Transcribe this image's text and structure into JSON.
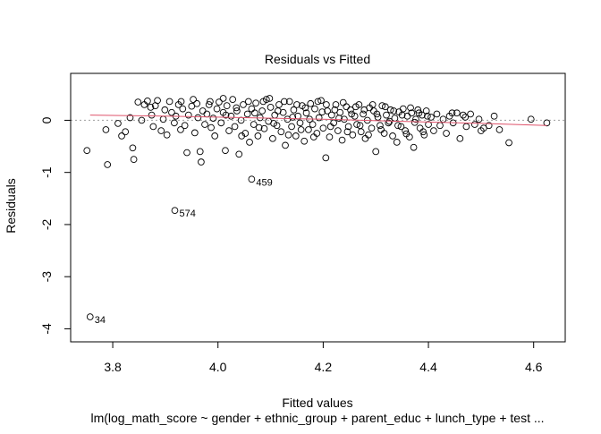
{
  "chart_data": {
    "type": "scatter",
    "title": "Residuals vs Fitted",
    "xlabel": "Fitted values",
    "ylabel": "Residuals",
    "subtitle": "lm(log_math_score ~ gender + ethnic_group + parent_educ + lunch_type + test ...",
    "xlim": [
      3.72,
      4.66
    ],
    "ylim": [
      -4.25,
      0.9
    ],
    "x_ticks": [
      3.8,
      4.0,
      4.2,
      4.4,
      4.6
    ],
    "x_tick_labels": [
      "3.8",
      "4.0",
      "4.2",
      "4.4",
      "4.6"
    ],
    "y_ticks": [
      -4,
      -3,
      -2,
      -1,
      0
    ],
    "y_tick_labels": [
      "-4",
      "-3",
      "-2",
      "-1",
      "0"
    ],
    "zero_line": true,
    "smoother_color": "#DF536B",
    "zero_line_color": "#9E9E9E",
    "point_color": "#000000",
    "labeled_points": [
      {
        "label": "34",
        "x": 3.757,
        "y": -3.77
      },
      {
        "label": "574",
        "x": 3.918,
        "y": -1.73
      },
      {
        "label": "459",
        "x": 4.064,
        "y": -1.13
      }
    ],
    "smoother": [
      {
        "x": 3.757,
        "y": 0.1
      },
      {
        "x": 3.9,
        "y": 0.08
      },
      {
        "x": 4.05,
        "y": 0.05
      },
      {
        "x": 4.2,
        "y": 0.02
      },
      {
        "x": 4.35,
        "y": -0.02
      },
      {
        "x": 4.5,
        "y": -0.06
      },
      {
        "x": 4.625,
        "y": -0.1
      }
    ],
    "points": [
      {
        "x": 3.751,
        "y": -0.58
      },
      {
        "x": 3.79,
        "y": -0.85
      },
      {
        "x": 3.787,
        "y": -0.18
      },
      {
        "x": 3.81,
        "y": -0.06
      },
      {
        "x": 3.817,
        "y": -0.3
      },
      {
        "x": 3.824,
        "y": -0.22
      },
      {
        "x": 3.833,
        "y": 0.05
      },
      {
        "x": 3.838,
        "y": -0.53
      },
      {
        "x": 3.84,
        "y": -0.75
      },
      {
        "x": 3.848,
        "y": 0.35
      },
      {
        "x": 3.855,
        "y": 0.0
      },
      {
        "x": 3.86,
        "y": 0.3
      },
      {
        "x": 3.866,
        "y": 0.37
      },
      {
        "x": 3.872,
        "y": 0.25
      },
      {
        "x": 3.874,
        "y": 0.1
      },
      {
        "x": 3.877,
        "y": -0.12
      },
      {
        "x": 3.881,
        "y": 0.28
      },
      {
        "x": 3.885,
        "y": 0.38
      },
      {
        "x": 3.892,
        "y": -0.2
      },
      {
        "x": 3.896,
        "y": 0.02
      },
      {
        "x": 3.899,
        "y": 0.2
      },
      {
        "x": 3.903,
        "y": -0.28
      },
      {
        "x": 3.908,
        "y": 0.36
      },
      {
        "x": 3.912,
        "y": 0.15
      },
      {
        "x": 3.917,
        "y": -0.05
      },
      {
        "x": 3.92,
        "y": 0.08
      },
      {
        "x": 3.925,
        "y": 0.3
      },
      {
        "x": 3.929,
        "y": -0.18
      },
      {
        "x": 3.933,
        "y": 0.22
      },
      {
        "x": 3.937,
        "y": -0.1
      },
      {
        "x": 3.941,
        "y": -0.62
      },
      {
        "x": 3.944,
        "y": 0.1
      },
      {
        "x": 3.95,
        "y": 0.27
      },
      {
        "x": 3.953,
        "y": 0.4
      },
      {
        "x": 3.956,
        "y": -0.24
      },
      {
        "x": 3.962,
        "y": 0.05
      },
      {
        "x": 3.966,
        "y": -0.6
      },
      {
        "x": 3.968,
        "y": -0.8
      },
      {
        "x": 3.971,
        "y": 0.18
      },
      {
        "x": 3.975,
        "y": -0.08
      },
      {
        "x": 3.979,
        "y": 0.12
      },
      {
        "x": 3.983,
        "y": 0.3
      },
      {
        "x": 3.987,
        "y": -0.14
      },
      {
        "x": 3.991,
        "y": 0.04
      },
      {
        "x": 3.994,
        "y": -0.3
      },
      {
        "x": 3.998,
        "y": 0.22
      },
      {
        "x": 4.002,
        "y": 0.35
      },
      {
        "x": 4.006,
        "y": -0.05
      },
      {
        "x": 4.01,
        "y": 0.15
      },
      {
        "x": 4.014,
        "y": -0.58
      },
      {
        "x": 4.017,
        "y": 0.28
      },
      {
        "x": 4.021,
        "y": -0.2
      },
      {
        "x": 4.025,
        "y": 0.08
      },
      {
        "x": 4.028,
        "y": 0.4
      },
      {
        "x": 4.032,
        "y": -0.12
      },
      {
        "x": 4.036,
        "y": 0.18
      },
      {
        "x": 4.04,
        "y": -0.65
      },
      {
        "x": 4.044,
        "y": 0.0
      },
      {
        "x": 4.048,
        "y": 0.3
      },
      {
        "x": 4.052,
        "y": -0.25
      },
      {
        "x": 4.056,
        "y": 0.12
      },
      {
        "x": 4.06,
        "y": -0.42
      },
      {
        "x": 4.064,
        "y": 0.22
      },
      {
        "x": 4.068,
        "y": -0.08
      },
      {
        "x": 4.072,
        "y": 0.33
      },
      {
        "x": 4.076,
        "y": -0.3
      },
      {
        "x": 4.08,
        "y": 0.05
      },
      {
        "x": 4.084,
        "y": 0.18
      },
      {
        "x": 4.088,
        "y": -0.16
      },
      {
        "x": 4.092,
        "y": 0.4
      },
      {
        "x": 4.096,
        "y": -0.02
      },
      {
        "x": 4.1,
        "y": 0.25
      },
      {
        "x": 4.104,
        "y": -0.35
      },
      {
        "x": 4.108,
        "y": 0.1
      },
      {
        "x": 4.112,
        "y": -0.1
      },
      {
        "x": 4.116,
        "y": 0.3
      },
      {
        "x": 4.12,
        "y": -0.22
      },
      {
        "x": 4.124,
        "y": 0.15
      },
      {
        "x": 4.128,
        "y": -0.48
      },
      {
        "x": 4.132,
        "y": 0.02
      },
      {
        "x": 4.136,
        "y": 0.36
      },
      {
        "x": 4.14,
        "y": -0.12
      },
      {
        "x": 4.144,
        "y": 0.2
      },
      {
        "x": 4.148,
        "y": -0.3
      },
      {
        "x": 4.152,
        "y": 0.08
      },
      {
        "x": 4.156,
        "y": -0.05
      },
      {
        "x": 4.16,
        "y": 0.28
      },
      {
        "x": 4.164,
        "y": -0.4
      },
      {
        "x": 4.168,
        "y": 0.14
      },
      {
        "x": 4.172,
        "y": -0.18
      },
      {
        "x": 4.176,
        "y": 0.32
      },
      {
        "x": 4.18,
        "y": -0.08
      },
      {
        "x": 4.184,
        "y": 0.22
      },
      {
        "x": 4.188,
        "y": -0.25
      },
      {
        "x": 4.192,
        "y": 0.05
      },
      {
        "x": 4.196,
        "y": 0.38
      },
      {
        "x": 4.2,
        "y": -0.15
      },
      {
        "x": 4.205,
        "y": -0.72
      },
      {
        "x": 4.208,
        "y": 0.18
      },
      {
        "x": 4.212,
        "y": -0.32
      },
      {
        "x": 4.216,
        "y": 0.1
      },
      {
        "x": 4.22,
        "y": -0.05
      },
      {
        "x": 4.224,
        "y": 0.3
      },
      {
        "x": 4.228,
        "y": -0.2
      },
      {
        "x": 4.232,
        "y": 0.15
      },
      {
        "x": 4.236,
        "y": -0.38
      },
      {
        "x": 4.24,
        "y": 0.02
      },
      {
        "x": 4.244,
        "y": 0.26
      },
      {
        "x": 4.248,
        "y": -0.12
      },
      {
        "x": 4.252,
        "y": 0.2
      },
      {
        "x": 4.256,
        "y": -0.28
      },
      {
        "x": 4.26,
        "y": 0.08
      },
      {
        "x": 4.264,
        "y": -0.08
      },
      {
        "x": 4.268,
        "y": 0.3
      },
      {
        "x": 4.272,
        "y": -0.22
      },
      {
        "x": 4.276,
        "y": 0.12
      },
      {
        "x": 4.28,
        "y": -0.35
      },
      {
        "x": 4.284,
        "y": 0.0
      },
      {
        "x": 4.288,
        "y": 0.24
      },
      {
        "x": 4.292,
        "y": -0.15
      },
      {
        "x": 4.296,
        "y": 0.18
      },
      {
        "x": 4.3,
        "y": -0.6
      },
      {
        "x": 4.304,
        "y": 0.06
      },
      {
        "x": 4.308,
        "y": -0.1
      },
      {
        "x": 4.312,
        "y": 0.28
      },
      {
        "x": 4.316,
        "y": -0.25
      },
      {
        "x": 4.32,
        "y": 0.1
      },
      {
        "x": 4.324,
        "y": -0.05
      },
      {
        "x": 4.328,
        "y": 0.2
      },
      {
        "x": 4.332,
        "y": -0.3
      },
      {
        "x": 4.336,
        "y": 0.04
      },
      {
        "x": 4.34,
        "y": -0.42
      },
      {
        "x": 4.344,
        "y": 0.16
      },
      {
        "x": 4.348,
        "y": -0.12
      },
      {
        "x": 4.352,
        "y": 0.22
      },
      {
        "x": 4.356,
        "y": -0.2
      },
      {
        "x": 4.36,
        "y": 0.08
      },
      {
        "x": 4.364,
        "y": -0.32
      },
      {
        "x": 4.368,
        "y": 0.14
      },
      {
        "x": 4.372,
        "y": -0.52
      },
      {
        "x": 4.376,
        "y": 0.02
      },
      {
        "x": 4.38,
        "y": 0.2
      },
      {
        "x": 4.384,
        "y": -0.15
      },
      {
        "x": 4.388,
        "y": 0.1
      },
      {
        "x": 4.392,
        "y": -0.28
      },
      {
        "x": 4.396,
        "y": 0.18
      },
      {
        "x": 4.4,
        "y": -0.08
      },
      {
        "x": 4.405,
        "y": 0.06
      },
      {
        "x": 4.41,
        "y": -0.2
      },
      {
        "x": 4.416,
        "y": 0.12
      },
      {
        "x": 4.422,
        "y": -0.1
      },
      {
        "x": 4.428,
        "y": 0.02
      },
      {
        "x": 4.434,
        "y": -0.25
      },
      {
        "x": 4.44,
        "y": 0.08
      },
      {
        "x": 4.447,
        "y": -0.05
      },
      {
        "x": 4.454,
        "y": 0.14
      },
      {
        "x": 4.46,
        "y": -0.35
      },
      {
        "x": 4.466,
        "y": 0.1
      },
      {
        "x": 4.472,
        "y": -0.12
      },
      {
        "x": 4.48,
        "y": 0.12
      },
      {
        "x": 4.488,
        "y": -0.08
      },
      {
        "x": 4.496,
        "y": 0.02
      },
      {
        "x": 4.505,
        "y": -0.15
      },
      {
        "x": 4.515,
        "y": -0.1
      },
      {
        "x": 4.525,
        "y": 0.08
      },
      {
        "x": 4.535,
        "y": -0.18
      },
      {
        "x": 4.553,
        "y": -0.43
      },
      {
        "x": 4.595,
        "y": 0.02
      },
      {
        "x": 4.625,
        "y": -0.05
      },
      {
        "x": 3.93,
        "y": 0.36
      },
      {
        "x": 3.96,
        "y": 0.32
      },
      {
        "x": 3.985,
        "y": 0.36
      },
      {
        "x": 4.01,
        "y": 0.42
      },
      {
        "x": 4.015,
        "y": 0.1
      },
      {
        "x": 4.035,
        "y": 0.24
      },
      {
        "x": 4.045,
        "y": -0.3
      },
      {
        "x": 4.058,
        "y": 0.36
      },
      {
        "x": 4.07,
        "y": 0.14
      },
      {
        "x": 4.078,
        "y": -0.14
      },
      {
        "x": 4.086,
        "y": 0.36
      },
      {
        "x": 4.098,
        "y": 0.42
      },
      {
        "x": 4.106,
        "y": -0.06
      },
      {
        "x": 4.114,
        "y": 0.18
      },
      {
        "x": 4.126,
        "y": 0.36
      },
      {
        "x": 4.134,
        "y": -0.28
      },
      {
        "x": 4.142,
        "y": 0.06
      },
      {
        "x": 4.15,
        "y": 0.3
      },
      {
        "x": 4.158,
        "y": -0.18
      },
      {
        "x": 4.166,
        "y": 0.24
      },
      {
        "x": 4.174,
        "y": 0.02
      },
      {
        "x": 4.182,
        "y": -0.32
      },
      {
        "x": 4.19,
        "y": 0.36
      },
      {
        "x": 4.198,
        "y": 0.16
      },
      {
        "x": 4.206,
        "y": 0.3
      },
      {
        "x": 4.214,
        "y": -0.12
      },
      {
        "x": 4.222,
        "y": 0.2
      },
      {
        "x": 4.23,
        "y": 0.04
      },
      {
        "x": 4.238,
        "y": 0.34
      },
      {
        "x": 4.246,
        "y": -0.22
      },
      {
        "x": 4.254,
        "y": 0.12
      },
      {
        "x": 4.262,
        "y": 0.26
      },
      {
        "x": 4.27,
        "y": -0.1
      },
      {
        "x": 4.278,
        "y": 0.2
      },
      {
        "x": 4.286,
        "y": -0.28
      },
      {
        "x": 4.294,
        "y": 0.3
      },
      {
        "x": 4.302,
        "y": 0.12
      },
      {
        "x": 4.31,
        "y": -0.18
      },
      {
        "x": 4.318,
        "y": 0.26
      },
      {
        "x": 4.326,
        "y": -0.02
      },
      {
        "x": 4.334,
        "y": 0.18
      },
      {
        "x": 4.342,
        "y": -0.1
      },
      {
        "x": 4.35,
        "y": 0.1
      },
      {
        "x": 4.358,
        "y": -0.26
      },
      {
        "x": 4.366,
        "y": 0.24
      },
      {
        "x": 4.374,
        "y": -0.04
      },
      {
        "x": 4.382,
        "y": 0.14
      },
      {
        "x": 4.39,
        "y": -0.22
      },
      {
        "x": 4.398,
        "y": 0.08
      },
      {
        "x": 4.445,
        "y": 0.14
      },
      {
        "x": 4.47,
        "y": 0.06
      },
      {
        "x": 4.5,
        "y": -0.2
      }
    ]
  }
}
